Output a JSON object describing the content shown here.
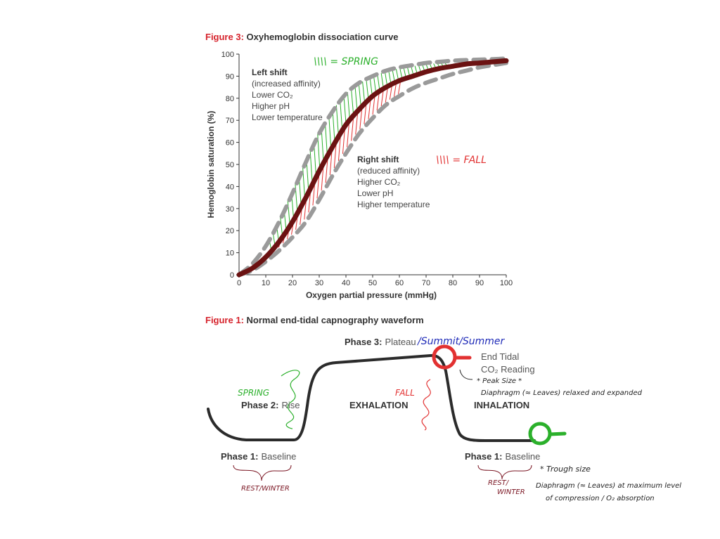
{
  "figure3": {
    "title_lead": "Figure 3:",
    "title_rest": "Oxyhemoglobin dissociation curve",
    "left_shift": [
      "Left shift",
      "(increased affinity)",
      "Lower CO₂",
      "Higher pH",
      "Lower temperature"
    ],
    "right_shift": [
      "Right shift",
      "(reduced affinity)",
      "Higher CO₂",
      "Lower pH",
      "Higher temperature"
    ],
    "spring_note": "\\\\\\\\ = SPRING",
    "fall_note": "\\\\\\\\ = FALL"
  },
  "figure1": {
    "title_lead": "Figure 1:",
    "title_rest": "Normal end-tidal capnography waveform",
    "phase3_bold": "Phase 3:",
    "phase3_rest": "Plateau",
    "phase3_note": "/Summit/Summer",
    "end_tidal_line1": "End Tidal",
    "end_tidal_line2": "CO₂ Reading",
    "peak_note_line1": "* Peak Size *",
    "peak_note_line2": "Diaphragm (≈ Leaves) relaxed and expanded",
    "spring_label": "SPRING",
    "phase2_bold": "Phase 2:",
    "phase2_rest": "Rise",
    "exhalation": "EXHALATION",
    "fall_label": "FALL",
    "inhalation": "INHALATION",
    "phase1_bold": "Phase 1:",
    "phase1_rest": "Baseline",
    "rest_winter_left": "REST/WINTER",
    "rest_winter_right_1": "REST/",
    "rest_winter_right_2": "WINTER",
    "trough_note_line1": "* Trough size",
    "trough_note_line2": "Diaphragm (≈ Leaves) at maximum level",
    "trough_note_line3": "of compression / O₂ absorption"
  },
  "colors": {
    "curve": "#6b1212",
    "shift_dash": "#9a9a9a",
    "spring": "#2bb02b",
    "fall": "#e23131",
    "summit": "#1f2bb8",
    "note_ink": "#222222",
    "rest_ink": "#7a1522",
    "wave": "#2b2b2b"
  },
  "chart_data": {
    "type": "line",
    "title": "Oxyhemoglobin dissociation curve",
    "xlabel": "Oxygen partial pressure (mmHg)",
    "ylabel": "Hemoglobin saturation (%)",
    "xlim": [
      0,
      100
    ],
    "ylim": [
      0,
      100
    ],
    "xticks": [
      0,
      10,
      20,
      30,
      40,
      50,
      60,
      70,
      80,
      90,
      100
    ],
    "yticks": [
      0,
      10,
      20,
      30,
      40,
      50,
      60,
      70,
      80,
      90,
      100
    ],
    "grid": false,
    "series": [
      {
        "name": "",
        "style": "solid",
        "x": [
          0,
          5,
          10,
          15,
          20,
          25,
          30,
          35,
          40,
          45,
          50,
          55,
          60,
          65,
          70,
          75,
          80,
          85,
          90,
          95,
          100
        ],
        "y": [
          0,
          3,
          8,
          15,
          24,
          35,
          47,
          58,
          68,
          75,
          81,
          85,
          88,
          90,
          92,
          93.5,
          94.5,
          95.5,
          96,
          96.5,
          97
        ]
      },
      {
        "name": "Left shift",
        "style": "dashed",
        "x": [
          0,
          5,
          10,
          15,
          20,
          25,
          30,
          35,
          40,
          45,
          50,
          55,
          60,
          65,
          70,
          75,
          80,
          85,
          90,
          95,
          100
        ],
        "y": [
          0,
          5,
          13,
          24,
          37,
          51,
          64,
          74,
          82,
          87,
          90,
          92.5,
          94,
          95,
          96,
          96.5,
          97,
          97.3,
          97.5,
          97.7,
          98
        ]
      },
      {
        "name": "Right shift",
        "style": "dashed",
        "x": [
          0,
          5,
          10,
          15,
          20,
          25,
          30,
          35,
          40,
          45,
          50,
          55,
          60,
          65,
          70,
          75,
          80,
          85,
          90,
          95,
          100
        ],
        "y": [
          0,
          2,
          6,
          11,
          17,
          24,
          34,
          45,
          55,
          64,
          71,
          77,
          81,
          84.5,
          87,
          89,
          91,
          92.5,
          94,
          95,
          96
        ]
      }
    ]
  }
}
